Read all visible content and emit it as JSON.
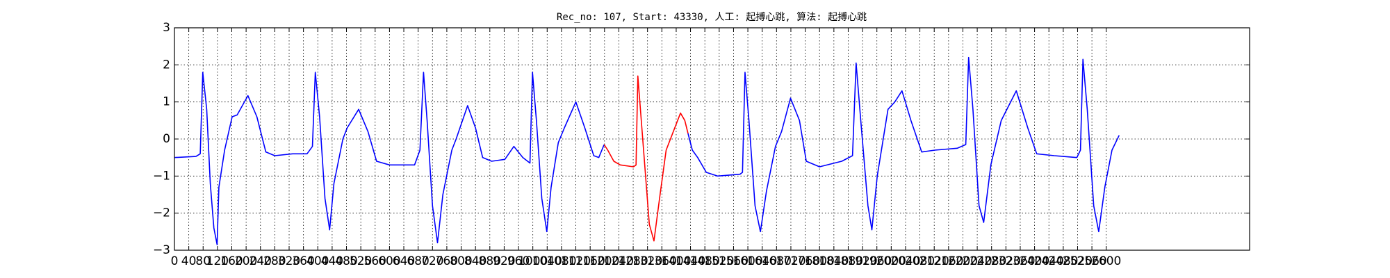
{
  "chart_data": {
    "type": "line",
    "title": "Rec_no: 107, Start: 43330, 人工: 起搏心跳, 算法: 起搏心跳",
    "xlim": [
      0,
      3000
    ],
    "xticks": [
      0,
      40,
      80,
      120,
      160,
      200,
      240,
      280,
      320,
      360,
      400,
      440,
      480,
      520,
      560,
      600,
      640,
      680,
      720,
      760,
      800,
      840,
      880,
      920,
      960,
      1000,
      1040,
      1080,
      1120,
      1160,
      1200,
      1240,
      1280,
      1320,
      1360,
      1400,
      1440,
      1480,
      1520,
      1560,
      1600,
      1640,
      1680,
      1720,
      1760,
      1800,
      1840,
      1880,
      1920,
      1960,
      2000,
      2040,
      2080,
      2120,
      2160,
      2200,
      2240,
      2280,
      2320,
      2360,
      2400,
      2440,
      2480,
      2520,
      2560,
      2600
    ],
    "ylim": [
      -3,
      3
    ],
    "yticks": [
      {
        "value": -3,
        "label": "−3"
      },
      {
        "value": -2,
        "label": "−2"
      },
      {
        "value": -1,
        "label": "−1"
      },
      0,
      1,
      2,
      3
    ],
    "grid": true,
    "series": [
      {
        "color": "#0000ff",
        "x": [
          0,
          60,
          72,
          79,
          90,
          100,
          110,
          119,
          124,
          140,
          161,
          175,
          205,
          230,
          255,
          280,
          330,
          370,
          385,
          393,
          405,
          420,
          433,
          445,
          470,
          482,
          514,
          540,
          564,
          600,
          670,
          685,
          695,
          705,
          720,
          734,
          749,
          774,
          786,
          818,
          840,
          860,
          885,
          922,
          947,
          972,
          992,
          999,
          1010,
          1025,
          1039,
          1051,
          1071,
          1088,
          1120,
          1145,
          1170,
          1184,
          1199
        ],
        "values": [
          -0.5,
          -0.47,
          -0.4,
          1.8,
          0.8,
          -1.2,
          -2.4,
          -2.85,
          -1.3,
          -0.3,
          0.6,
          0.65,
          1.17,
          0.6,
          -0.35,
          -0.45,
          -0.4,
          -0.4,
          -0.2,
          1.8,
          0.6,
          -1.6,
          -2.45,
          -1.2,
          0,
          0.3,
          0.8,
          0.2,
          -0.6,
          -0.7,
          -0.7,
          -0.3,
          1.8,
          0.5,
          -1.8,
          -2.8,
          -1.5,
          -0.3,
          0,
          0.9,
          0.3,
          -0.5,
          -0.6,
          -0.55,
          -0.2,
          -0.5,
          -0.65,
          1.8,
          0.5,
          -1.6,
          -2.5,
          -1.3,
          -0.1,
          0.3,
          1.0,
          0.3,
          -0.45,
          -0.5,
          -0.15
        ]
      },
      {
        "color": "#ff0000",
        "x": [
          1199,
          1209,
          1226,
          1244,
          1281,
          1288,
          1293,
          1305,
          1325,
          1338,
          1355,
          1372,
          1392,
          1412,
          1424,
          1433
        ],
        "values": [
          -0.15,
          -0.3,
          -0.6,
          -0.7,
          -0.75,
          -0.7,
          1.7,
          0.2,
          -2.3,
          -2.75,
          -1.5,
          -0.3,
          0.2,
          0.7,
          0.5,
          0.15
        ]
      },
      {
        "color": "#0000ff",
        "x": [
          1433,
          1445,
          1460,
          1484,
          1516,
          1578,
          1585,
          1592,
          1603,
          1620,
          1635,
          1652,
          1677,
          1694,
          1719,
          1744,
          1763,
          1800,
          1862,
          1892,
          1902,
          1915,
          1935,
          1946,
          1961,
          1991,
          2010,
          2030,
          2055,
          2085,
          2122,
          2184,
          2208,
          2216,
          2228,
          2245,
          2258,
          2278,
          2307,
          2349,
          2381,
          2406,
          2455,
          2518,
          2528,
          2535,
          2547,
          2565,
          2579,
          2596,
          2616,
          2636
        ],
        "values": [
          0.15,
          -0.3,
          -0.5,
          -0.9,
          -1.0,
          -0.95,
          -0.9,
          1.8,
          0.5,
          -1.8,
          -2.5,
          -1.4,
          -0.2,
          0.2,
          1.1,
          0.5,
          -0.6,
          -0.75,
          -0.6,
          -0.45,
          2.05,
          0.5,
          -1.8,
          -2.45,
          -1.0,
          0.8,
          1.0,
          1.3,
          0.5,
          -0.35,
          -0.3,
          -0.25,
          -0.15,
          2.2,
          0.8,
          -1.8,
          -2.25,
          -0.7,
          0.5,
          1.3,
          0.3,
          -0.4,
          -0.45,
          -0.5,
          -0.3,
          2.15,
          0.8,
          -1.8,
          -2.5,
          -1.3,
          -0.3,
          0.1
        ]
      }
    ]
  }
}
